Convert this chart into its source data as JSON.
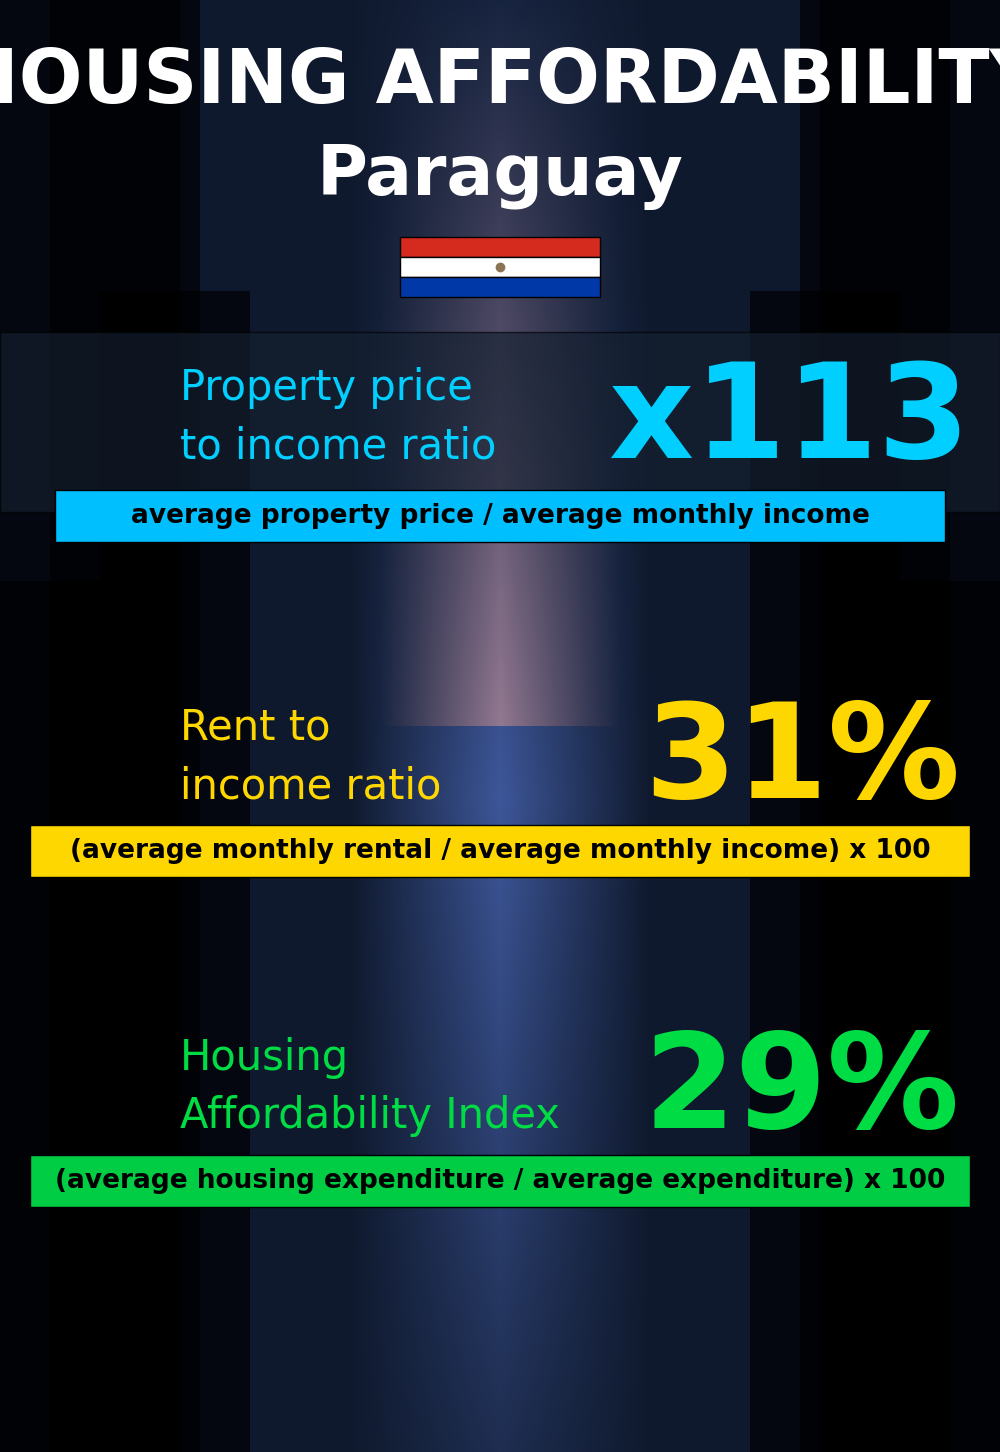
{
  "title_line1": "HOUSING AFFORDABILITY",
  "title_line2": "Paraguay",
  "bg_color": "#0d1b2a",
  "section1_label": "Property price\nto income ratio",
  "section1_value": "x113",
  "section1_label_color": "#00cfff",
  "section1_value_color": "#00cfff",
  "section1_formula": "average property price / average monthly income",
  "section1_formula_bg": "#00bfff",
  "section2_label": "Rent to\nincome ratio",
  "section2_value": "31%",
  "section2_label_color": "#ffd700",
  "section2_value_color": "#ffd700",
  "section2_formula": "(average monthly rental / average monthly income) x 100",
  "section2_formula_bg": "#ffd700",
  "section3_label": "Housing\nAffordability Index",
  "section3_value": "29%",
  "section3_label_color": "#00dd44",
  "section3_value_color": "#00dd44",
  "section3_formula": "(average housing expenditure / average expenditure) x 100",
  "section3_formula_bg": "#00cc44",
  "title_line1_color": "#ffffff",
  "title_line2_color": "#ffffff",
  "title_line1_fontsize": 54,
  "title_line2_fontsize": 50,
  "section_label_fontsize": 30,
  "section_value_fontsize": 95,
  "formula_fontsize": 19
}
